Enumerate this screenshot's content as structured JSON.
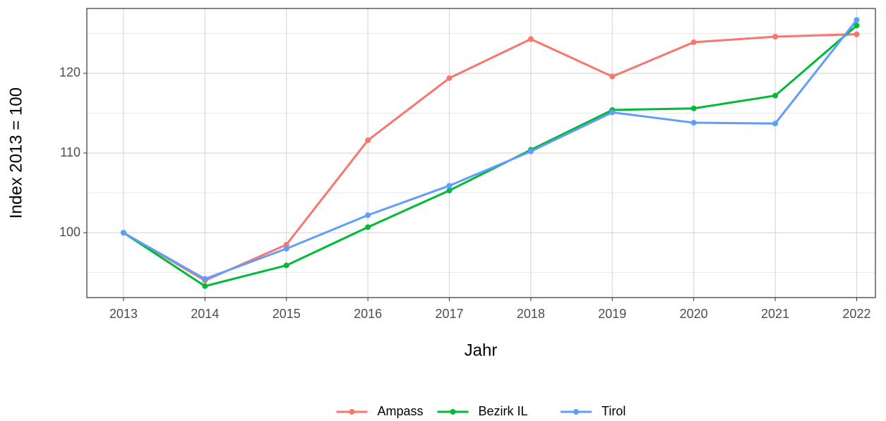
{
  "chart_data": {
    "type": "line",
    "x_label": "Jahr",
    "y_label": "Index  2013  = 100",
    "x": [
      2013,
      2014,
      2015,
      2016,
      2017,
      2018,
      2019,
      2020,
      2021,
      2022
    ],
    "series": [
      {
        "name": "Ampass",
        "color": "#F8766D",
        "values": [
          100,
          94.0,
          98.5,
          111.6,
          119.4,
          124.3,
          119.6,
          123.9,
          124.6,
          124.9
        ]
      },
      {
        "name": "Bezirk IL",
        "color": "#00BA38",
        "values": [
          100,
          93.3,
          95.9,
          100.7,
          105.3,
          110.4,
          115.4,
          115.6,
          117.2,
          126.0
        ]
      },
      {
        "name": "Tirol",
        "color": "#619CFF",
        "values": [
          100,
          94.2,
          98.0,
          102.2,
          105.9,
          110.2,
          115.1,
          113.8,
          113.7,
          126.7
        ]
      }
    ],
    "xlim": [
      2012.55,
      2022.23
    ],
    "xticks": [
      2013,
      2014,
      2015,
      2016,
      2017,
      2018,
      2019,
      2020,
      2021,
      2022
    ],
    "ylim": [
      91.86,
      128.14
    ],
    "yticks": [
      100,
      110,
      120
    ],
    "yminor": [
      95,
      105,
      115,
      125
    ],
    "grid": true,
    "legend": "bottom"
  }
}
